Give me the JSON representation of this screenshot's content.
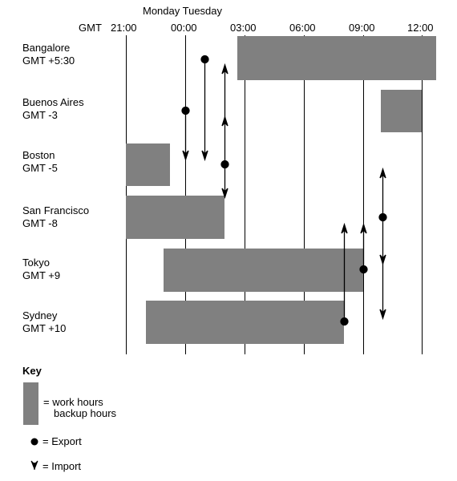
{
  "header": {
    "day_labels": "Monday Tuesday",
    "gmt_label": "GMT",
    "ticks": [
      "21:00",
      "00:00",
      "03:00",
      "06:00",
      "09:00",
      "12:00"
    ]
  },
  "cities": [
    {
      "name": "Bangalore",
      "offset": "GMT +5:30"
    },
    {
      "name": "Buenos Aires",
      "offset": "GMT -3"
    },
    {
      "name": "Boston",
      "offset": "GMT -5"
    },
    {
      "name": "San Francisco",
      "offset": "GMT -8"
    },
    {
      "name": "Tokyo",
      "offset": "GMT +9"
    },
    {
      "name": "Sydney",
      "offset": "GMT +10"
    }
  ],
  "key": {
    "title": "Key",
    "work_hours": "= work hours",
    "backup_hours": "backup hours",
    "export": "= Export",
    "import": "= Import"
  },
  "colors": {
    "bar": "#808080",
    "line": "#000000"
  }
}
